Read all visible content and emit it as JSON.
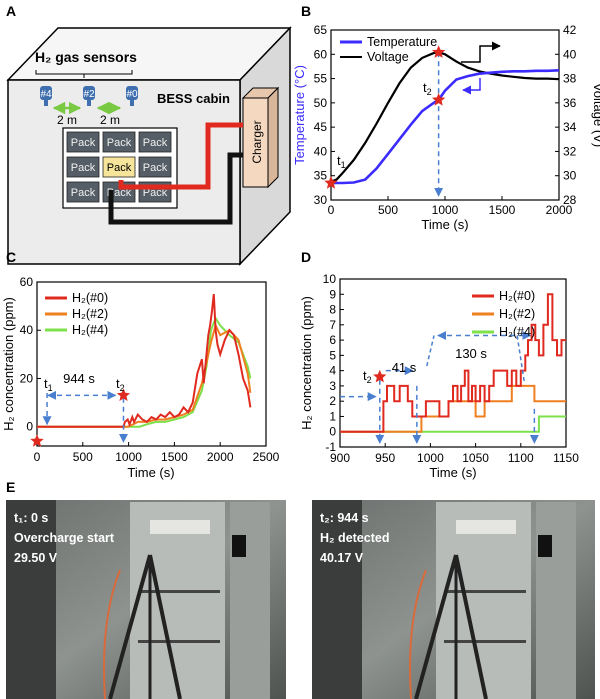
{
  "panel_labels": {
    "a": "A",
    "b": "B",
    "c": "C",
    "d": "D",
    "e": "E"
  },
  "panel_a": {
    "sensors_title": "H₂ gas sensors",
    "sensor_labels": [
      "#4",
      "#2",
      "#0"
    ],
    "spacing_labels": [
      "2 m",
      "2 m"
    ],
    "cabin_label": "BESS cabin",
    "charger_label": "Charger",
    "pack_label": "Pack",
    "colors": {
      "cabin": "#ededed",
      "pack": "#555e66",
      "highlight_pack": "#f5e49a",
      "charger": "#f4d8c0",
      "cable_red": "#e02a20",
      "cable_black": "#111111",
      "sensor": "#3f6fae",
      "arrow": "#7ac943"
    }
  },
  "chart_data": [
    {
      "id": "B",
      "type": "line",
      "xlabel": "Time  (s)",
      "ylabel_left": "Temperature (°C)",
      "ylabel_right": "Voltage (V)",
      "xlim": [
        0,
        2000
      ],
      "ylim_left": [
        30,
        65
      ],
      "ylim_right": [
        28,
        42
      ],
      "xticks": [
        "0",
        "500",
        "1000",
        "1500",
        "2000"
      ],
      "yticks_left": [
        "30",
        "35",
        "40",
        "45",
        "50",
        "55",
        "60",
        "65"
      ],
      "yticks_right": [
        "28",
        "30",
        "32",
        "34",
        "36",
        "38",
        "40",
        "42"
      ],
      "series": [
        {
          "name": "Temperature",
          "axis": "left",
          "color": "#3b2bff",
          "x": [
            0,
            100,
            200,
            300,
            400,
            500,
            600,
            700,
            800,
            900,
            944,
            1000,
            1100,
            1200,
            1300,
            1400,
            1500,
            1600,
            1700,
            1800,
            1900,
            2000
          ],
          "y": [
            33.5,
            33.5,
            33.6,
            34.2,
            36.5,
            39.5,
            42.5,
            45.5,
            48.3,
            50.0,
            50.6,
            52.5,
            54.8,
            55.5,
            56.0,
            56.2,
            56.4,
            56.5,
            56.5,
            56.6,
            56.6,
            56.7
          ]
        },
        {
          "name": "Voltage",
          "axis": "right",
          "color": "#000000",
          "x": [
            0,
            50,
            100,
            200,
            300,
            400,
            500,
            600,
            700,
            800,
            900,
            944,
            1000,
            1100,
            1200,
            1300,
            1400,
            1500,
            1600,
            1700,
            1800,
            1900,
            2000
          ],
          "y": [
            29.5,
            29.7,
            30.2,
            31.3,
            32.7,
            34.3,
            36.0,
            37.6,
            38.9,
            39.7,
            40.1,
            40.17,
            40.0,
            39.4,
            38.9,
            38.6,
            38.4,
            38.25,
            38.15,
            38.05,
            38.0,
            38.0,
            37.95
          ]
        }
      ],
      "annotations": {
        "t1": "t",
        "t1_sub": "1",
        "t2": "t",
        "t2_sub": "2"
      }
    },
    {
      "id": "C",
      "type": "line",
      "xlabel": "Time  (s)",
      "ylabel": "H₂ concentration (ppm)",
      "xlim": [
        0,
        2500
      ],
      "ylim": [
        -8,
        60
      ],
      "xticks": [
        "0",
        "500",
        "1000",
        "1500",
        "2000",
        "2500"
      ],
      "yticks": [
        "0",
        "20",
        "40",
        "60"
      ],
      "series": [
        {
          "name": "H₂(#0)",
          "color": "#e02a20",
          "x": [
            0,
            944,
            960,
            990,
            1010,
            1040,
            1060,
            1100,
            1150,
            1200,
            1250,
            1300,
            1350,
            1400,
            1450,
            1500,
            1550,
            1600,
            1650,
            1700,
            1750,
            1800,
            1820,
            1850,
            1870,
            1890,
            1910,
            1930,
            1950,
            1970,
            2000,
            2050,
            2100,
            2150,
            2200,
            2250,
            2300,
            2330
          ],
          "y": [
            0,
            0,
            2,
            3,
            1,
            4,
            2,
            5,
            3,
            2,
            4,
            3,
            5,
            4,
            6,
            4,
            5,
            8,
            6,
            10,
            22,
            28,
            18,
            30,
            38,
            42,
            48,
            55,
            40,
            34,
            30,
            36,
            40,
            38,
            30,
            20,
            15,
            8
          ]
        },
        {
          "name": "H₂(#2)",
          "color": "#f07f20",
          "x": [
            0,
            990,
            1050,
            1100,
            1200,
            1300,
            1400,
            1500,
            1600,
            1700,
            1800,
            1900,
            1950,
            2000,
            2100,
            2200,
            2300,
            2330
          ],
          "y": [
            0,
            0,
            1,
            2,
            2,
            3,
            3,
            4,
            5,
            7,
            18,
            35,
            42,
            38,
            40,
            36,
            22,
            14
          ]
        },
        {
          "name": "H₂(#4)",
          "color": "#7ee04a",
          "x": [
            0,
            1120,
            1200,
            1300,
            1400,
            1500,
            1600,
            1700,
            1800,
            1850,
            1900,
            1950,
            2000,
            2100,
            2200,
            2300,
            2330
          ],
          "y": [
            0,
            0,
            1,
            2,
            2,
            3,
            4,
            6,
            15,
            25,
            40,
            45,
            42,
            38,
            35,
            25,
            20
          ]
        }
      ],
      "annotations": {
        "t1": "t",
        "t1_sub": "1",
        "t2": "t",
        "t2_sub": "2",
        "gap": "944 s"
      }
    },
    {
      "id": "D",
      "type": "line",
      "xlabel": "Time  (s)",
      "ylabel": "H₂ concentration (ppm)",
      "xlim": [
        900,
        1150
      ],
      "ylim": [
        -1,
        10
      ],
      "xticks": [
        "900",
        "950",
        "1000",
        "1050",
        "1100",
        "1150"
      ],
      "yticks": [
        "-1",
        "0",
        "1",
        "2",
        "3",
        "4",
        "5",
        "6",
        "7",
        "8",
        "9",
        "10"
      ],
      "series": [
        {
          "name": "H₂(#0)",
          "color": "#e02a20",
          "x": [
            900,
            944,
            948,
            952,
            960,
            966,
            975,
            980,
            990,
            995,
            1005,
            1010,
            1020,
            1025,
            1030,
            1034,
            1038,
            1042,
            1046,
            1050,
            1055,
            1060,
            1065,
            1070,
            1080,
            1085,
            1090,
            1095,
            1100,
            1105,
            1108,
            1112,
            1116,
            1120,
            1125,
            1130,
            1135,
            1140,
            1145,
            1150
          ],
          "y": [
            0,
            0,
            2,
            3,
            2,
            3,
            2,
            1,
            1,
            2,
            2,
            1,
            2,
            3,
            2,
            3,
            4,
            2,
            3,
            2,
            3,
            2,
            3,
            4,
            4,
            3,
            4,
            3,
            4,
            5,
            6,
            7,
            6,
            5,
            7,
            9,
            6,
            5,
            6,
            6
          ]
        },
        {
          "name": "H₂(#2)",
          "color": "#f07f20",
          "x": [
            900,
            985,
            990,
            1000,
            1010,
            1020,
            1030,
            1040,
            1050,
            1060,
            1070,
            1080,
            1090,
            1100,
            1110,
            1115,
            1120,
            1130,
            1140,
            1150
          ],
          "y": [
            0,
            0,
            1,
            1,
            1,
            2,
            2,
            2,
            1,
            2,
            2,
            2,
            3,
            3,
            3,
            2,
            2,
            2,
            2,
            2
          ]
        },
        {
          "name": "H₂(#4)",
          "color": "#7ee04a",
          "x": [
            900,
            1115,
            1120,
            1125,
            1140,
            1150
          ],
          "y": [
            0,
            0,
            1,
            1,
            1,
            1
          ]
        }
      ],
      "annotations": {
        "t2": "t",
        "t2_sub": "2",
        "gap1": "41 s",
        "gap2": "130 s"
      }
    }
  ],
  "panel_e": {
    "left": {
      "time": "t₁: 0 s",
      "event": "Overcharge start",
      "voltage": "29.50 V"
    },
    "right": {
      "time": "t₂: 944 s",
      "event": "H₂ detected",
      "voltage": "40.17 V"
    }
  }
}
